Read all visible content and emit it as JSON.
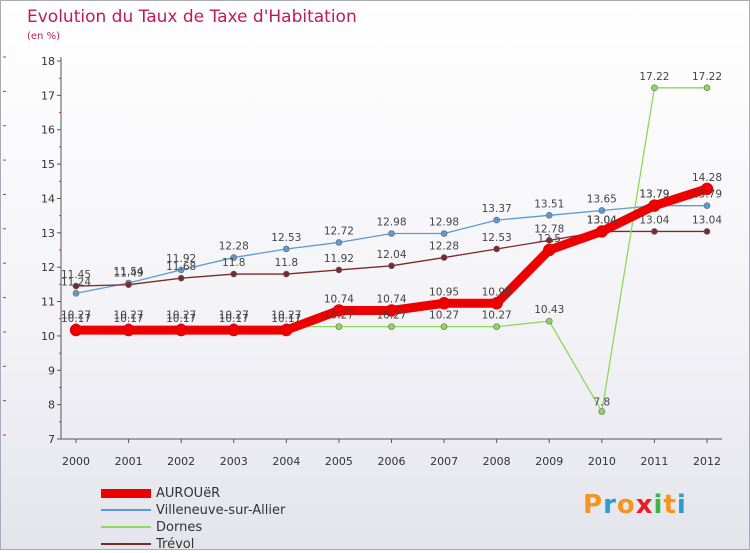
{
  "title": "Evolution du Taux de Taxe d'Habitation",
  "subtitle": "(en %)",
  "logo_letters": [
    "P",
    "r",
    "o",
    "x",
    "i",
    "t",
    "i"
  ],
  "logo_colors": [
    "#f7941d",
    "#2e9ad6",
    "#f7941d",
    "#ed1c24",
    "#39b54a",
    "#f7941d",
    "#2e9ad6"
  ],
  "chart_data": {
    "type": "line",
    "x": [
      "2000",
      "2001",
      "2002",
      "2003",
      "2004",
      "2005",
      "2006",
      "2007",
      "2008",
      "2009",
      "2010",
      "2011",
      "2012"
    ],
    "ylim": [
      7,
      18
    ],
    "yticks": [
      "7",
      "8",
      "9",
      "10",
      "11",
      "12",
      "13",
      "14",
      "15",
      "16",
      "17",
      "18"
    ],
    "grid": false,
    "legend_position": "bottom-left",
    "series": [
      {
        "name": "AUROUëR",
        "color": "#ee0000",
        "values": [
          10.17,
          10.17,
          10.17,
          10.17,
          10.17,
          10.74,
          10.74,
          10.95,
          10.95,
          12.5,
          13.04,
          13.79,
          14.28
        ],
        "labels": [
          "10.17",
          "10.17",
          "10.17",
          "10.17",
          "10.17",
          "10.74",
          "10.74",
          "10.95",
          "10.95",
          "12.5",
          "13.04",
          "13.79",
          "14.28"
        ]
      },
      {
        "name": "Villeneuve-sur-Allier",
        "color": "#5b9bd5",
        "values": [
          11.24,
          11.54,
          11.92,
          12.28,
          12.53,
          12.72,
          12.98,
          12.98,
          13.37,
          13.51,
          13.65,
          13.79,
          13.79
        ],
        "labels": [
          "11.24",
          "11.54",
          "11.92",
          "12.28",
          "12.53",
          "12.72",
          "12.98",
          "12.98",
          "13.37",
          "13.51",
          "13.65",
          "13.79",
          "13.79"
        ]
      },
      {
        "name": "Dornes",
        "color": "#8ed85a",
        "values": [
          10.27,
          10.27,
          10.27,
          10.27,
          10.27,
          10.27,
          10.27,
          10.27,
          10.27,
          10.43,
          7.8,
          17.22,
          17.22
        ],
        "labels": [
          "10.27",
          "10.27",
          "10.27",
          "10.27",
          "10.27",
          "10.27",
          "10.27",
          "10.27",
          "10.27",
          "10.43",
          "7.8",
          "17.22",
          "17.22"
        ]
      },
      {
        "name": "Trévol",
        "color": "#7a2a2a",
        "values": [
          11.45,
          11.49,
          11.68,
          11.8,
          11.8,
          11.92,
          12.04,
          12.28,
          12.53,
          12.78,
          13.04,
          13.04,
          13.04
        ],
        "labels": [
          "11.45",
          "11.49",
          "11.68",
          "11.8",
          "11.8",
          "11.92",
          "12.04",
          "12.28",
          "12.53",
          "12.78",
          "13.04",
          "13.04",
          "13.04"
        ]
      }
    ]
  }
}
